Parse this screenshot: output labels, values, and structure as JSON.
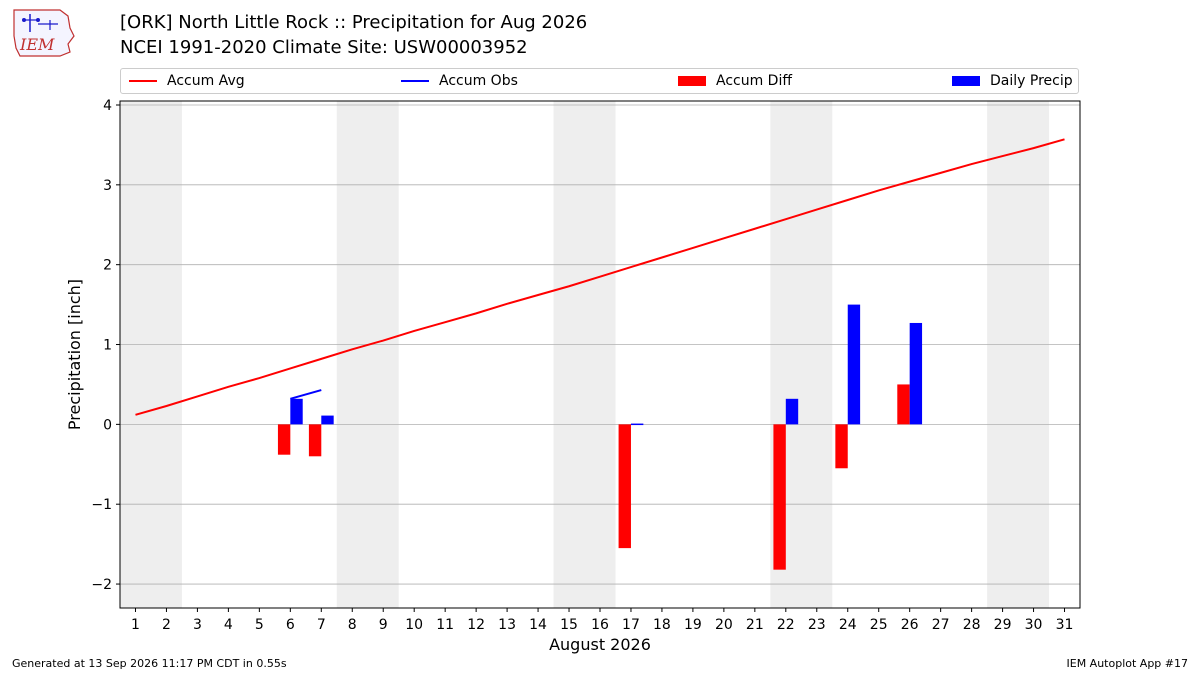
{
  "header": {
    "title_line1": "[ORK] North Little Rock :: Precipitation for Aug 2026",
    "title_line2": "NCEI 1991-2020 Climate Site: USW00003952",
    "logo_text": "IEM"
  },
  "footer": {
    "left": "Generated at 13 Sep 2026 11:17 PM CDT in 0.55s",
    "right": "IEM Autoplot App #17"
  },
  "colors": {
    "accum_avg": "#ff0000",
    "accum_obs": "#0000ff",
    "accum_diff": "#ff0000",
    "daily_precip": "#0000ff",
    "weekend_band": "#eeeeee",
    "grid": "#b0b0b0"
  },
  "chart_data": {
    "type": "bar",
    "title": "[ORK] North Little Rock :: Precipitation for Aug 2026",
    "xlabel": "August 2026",
    "ylabel": "Precipitation [inch]",
    "xlim": [
      0.5,
      31.5
    ],
    "ylim": [
      -2.3,
      4.05
    ],
    "yticks": [
      -2,
      -1,
      0,
      1,
      2,
      3,
      4
    ],
    "ytick_labels": [
      "−2",
      "−1",
      "0",
      "1",
      "2",
      "3",
      "4"
    ],
    "x": [
      1,
      2,
      3,
      4,
      5,
      6,
      7,
      8,
      9,
      10,
      11,
      12,
      13,
      14,
      15,
      16,
      17,
      18,
      19,
      20,
      21,
      22,
      23,
      24,
      25,
      26,
      27,
      28,
      29,
      30,
      31
    ],
    "grid": "horizontal",
    "legend_position": "top",
    "weekend_bands": [
      [
        1,
        2
      ],
      [
        8,
        9
      ],
      [
        15,
        16
      ],
      [
        22,
        23
      ],
      [
        29,
        30
      ]
    ],
    "series": [
      {
        "name": "Accum Avg",
        "kind": "line",
        "values": [
          0.12,
          0.23,
          0.35,
          0.47,
          0.58,
          0.7,
          0.82,
          0.94,
          1.05,
          1.17,
          1.28,
          1.39,
          1.51,
          1.62,
          1.73,
          1.85,
          1.97,
          2.09,
          2.21,
          2.33,
          2.45,
          2.57,
          2.69,
          2.81,
          2.93,
          3.04,
          3.15,
          3.26,
          3.36,
          3.46,
          3.57
        ]
      },
      {
        "name": "Accum Obs",
        "kind": "line",
        "x": [
          6,
          7
        ],
        "values": [
          0.32,
          0.43
        ]
      },
      {
        "name": "Accum Diff",
        "kind": "bar",
        "x": [
          6,
          7,
          17,
          22,
          24,
          26
        ],
        "values": [
          -0.38,
          -0.4,
          -1.55,
          -1.82,
          -0.55,
          0.5
        ]
      },
      {
        "name": "Daily Precip",
        "kind": "bar",
        "x": [
          6,
          7,
          17,
          22,
          24,
          26
        ],
        "values": [
          0.32,
          0.11,
          0.01,
          0.32,
          1.5,
          1.27
        ]
      }
    ]
  }
}
